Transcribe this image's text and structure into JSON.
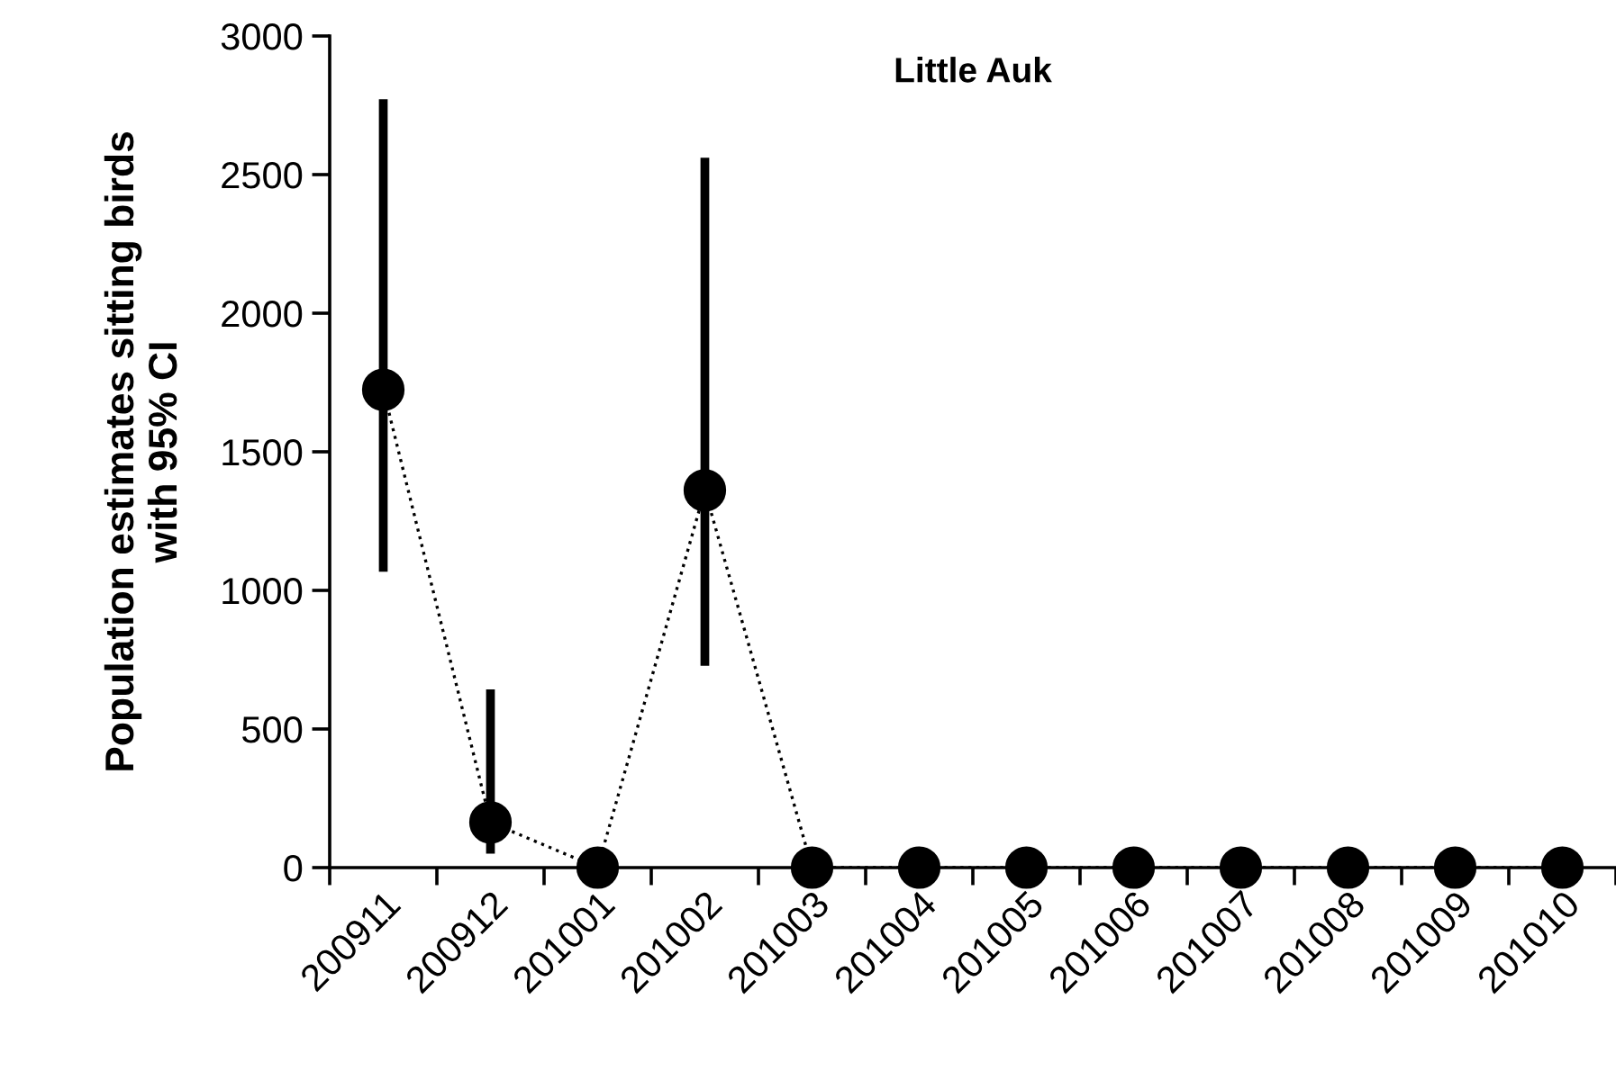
{
  "chart_data": {
    "type": "line",
    "title": "Little Auk",
    "ylabel": "Population estimates sitting birds\nwith 95% CI",
    "categories": [
      "200911",
      "200912",
      "201001",
      "201002",
      "201003",
      "201004",
      "201005",
      "201006",
      "201007",
      "201008",
      "201009",
      "201010"
    ],
    "values": [
      1724,
      163,
      0,
      1361,
      0,
      0,
      0,
      0,
      0,
      0,
      0,
      0
    ],
    "errors": [
      [
        1067,
        2772
      ],
      [
        50,
        643
      ],
      null,
      [
        728,
        2561
      ],
      null,
      null,
      null,
      null,
      null,
      null,
      null,
      null
    ],
    "color": "#000000",
    "marker": "circle",
    "line_style": "dotted",
    "grid": false,
    "legend": false,
    "ylim": [
      0,
      3000
    ],
    "yticks": [
      0,
      500,
      1000,
      1500,
      2000,
      2500,
      3000
    ]
  }
}
